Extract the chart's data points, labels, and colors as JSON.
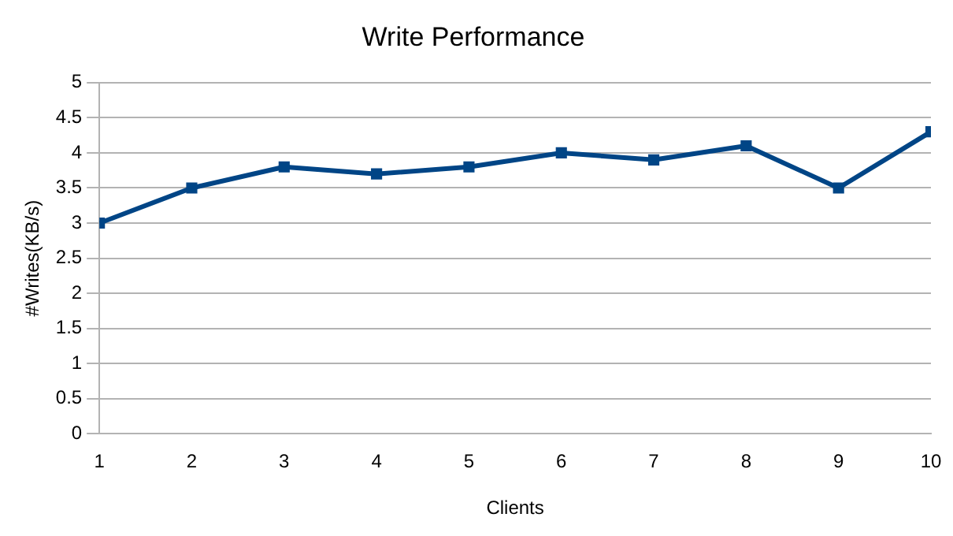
{
  "chart_data": {
    "type": "line",
    "title": "Write Performance",
    "xlabel": "Clients",
    "ylabel": "#Writes(KB/s)",
    "x": [
      1,
      2,
      3,
      4,
      5,
      6,
      7,
      8,
      9,
      10
    ],
    "series": [
      {
        "color": "#004586",
        "values": [
          3,
          3.5,
          3.8,
          3.7,
          3.8,
          4.0,
          3.9,
          4.1,
          3.5,
          4.3
        ]
      }
    ],
    "xlim": [
      1,
      10
    ],
    "xticks": [
      1,
      2,
      3,
      4,
      5,
      6,
      7,
      8,
      9,
      10
    ],
    "ylim": [
      0,
      5
    ],
    "yticks": [
      0,
      0.5,
      1,
      1.5,
      2,
      2.5,
      3,
      3.5,
      4,
      4.5,
      5
    ],
    "grid": "y",
    "legend": false,
    "marker": "square",
    "line_style": "solid"
  }
}
